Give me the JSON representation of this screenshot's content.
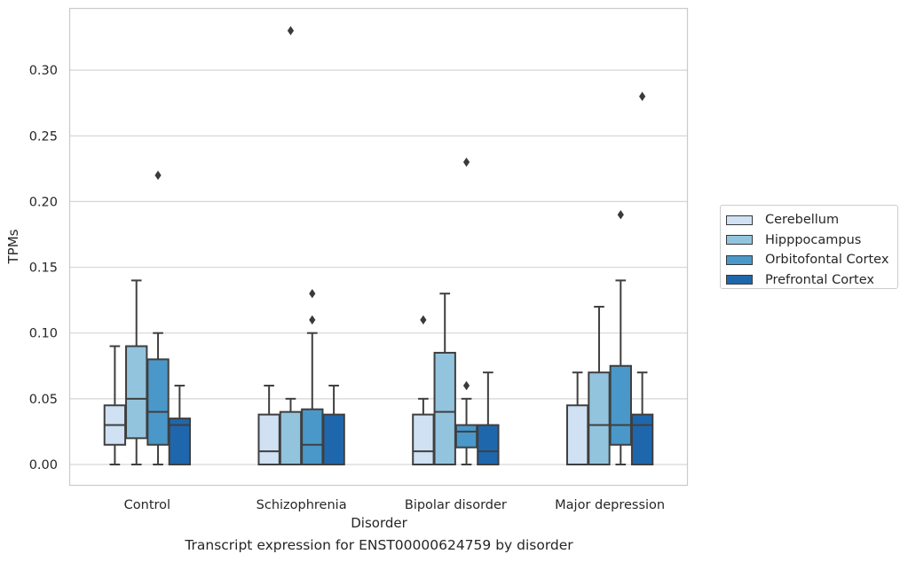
{
  "chart_data": {
    "type": "box",
    "title": "",
    "xlabel": "Disorder",
    "ylabel": "TPMs",
    "caption": "Transcript expression for ENST00000624759 by disorder",
    "ylim": [
      -0.016,
      0.346
    ],
    "yticks": [
      0.0,
      0.05,
      0.1,
      0.15,
      0.2,
      0.25,
      0.3
    ],
    "ytick_labels": [
      "0.00",
      "0.05",
      "0.10",
      "0.15",
      "0.20",
      "0.25",
      "0.30"
    ],
    "grid": true,
    "legend_position": "right",
    "categories": [
      "Control",
      "Schizophrenia",
      "Bipolar disorder",
      "Major depression"
    ],
    "series": [
      {
        "name": "Cerebellum",
        "color": "#cfe1f2",
        "boxes": [
          {
            "whislo": 0.0,
            "q1": 0.015,
            "med": 0.03,
            "q3": 0.045,
            "whishi": 0.09,
            "fliers": []
          },
          {
            "whislo": 0.0,
            "q1": 0.0,
            "med": 0.01,
            "q3": 0.038,
            "whishi": 0.06,
            "fliers": []
          },
          {
            "whislo": 0.0,
            "q1": 0.0,
            "med": 0.01,
            "q3": 0.038,
            "whishi": 0.05,
            "fliers": [
              0.11
            ]
          },
          {
            "whislo": 0.0,
            "q1": 0.0,
            "med": 0.0,
            "q3": 0.045,
            "whishi": 0.07,
            "fliers": []
          }
        ]
      },
      {
        "name": "Hipppocampus",
        "color": "#93c4de",
        "boxes": [
          {
            "whislo": 0.0,
            "q1": 0.02,
            "med": 0.05,
            "q3": 0.09,
            "whishi": 0.14,
            "fliers": []
          },
          {
            "whislo": 0.0,
            "q1": 0.0,
            "med": 0.0,
            "q3": 0.04,
            "whishi": 0.05,
            "fliers": [
              0.33
            ]
          },
          {
            "whislo": 0.0,
            "q1": 0.0,
            "med": 0.04,
            "q3": 0.085,
            "whishi": 0.13,
            "fliers": []
          },
          {
            "whislo": 0.0,
            "q1": 0.0,
            "med": 0.03,
            "q3": 0.07,
            "whishi": 0.12,
            "fliers": []
          }
        ]
      },
      {
        "name": "Orbitofontal Cortex",
        "color": "#4a98c9",
        "boxes": [
          {
            "whislo": 0.0,
            "q1": 0.015,
            "med": 0.04,
            "q3": 0.08,
            "whishi": 0.1,
            "fliers": [
              0.22
            ]
          },
          {
            "whislo": 0.0,
            "q1": 0.0,
            "med": 0.015,
            "q3": 0.042,
            "whishi": 0.1,
            "fliers": [
              0.11,
              0.13
            ]
          },
          {
            "whislo": 0.0,
            "q1": 0.013,
            "med": 0.025,
            "q3": 0.03,
            "whishi": 0.05,
            "fliers": [
              0.06,
              0.23
            ]
          },
          {
            "whislo": 0.0,
            "q1": 0.015,
            "med": 0.03,
            "q3": 0.075,
            "whishi": 0.14,
            "fliers": [
              0.19
            ]
          }
        ]
      },
      {
        "name": "Prefrontal Cortex",
        "color": "#1f67ad",
        "boxes": [
          {
            "whislo": 0.0,
            "q1": 0.0,
            "med": 0.03,
            "q3": 0.035,
            "whishi": 0.06,
            "fliers": []
          },
          {
            "whislo": 0.0,
            "q1": 0.0,
            "med": 0.0,
            "q3": 0.038,
            "whishi": 0.06,
            "fliers": []
          },
          {
            "whislo": 0.0,
            "q1": 0.0,
            "med": 0.01,
            "q3": 0.03,
            "whishi": 0.07,
            "fliers": []
          },
          {
            "whislo": 0.0,
            "q1": 0.0,
            "med": 0.03,
            "q3": 0.038,
            "whishi": 0.07,
            "fliers": [
              0.28
            ]
          }
        ]
      }
    ]
  }
}
